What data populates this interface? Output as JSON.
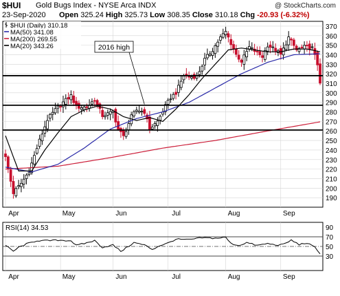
{
  "header": {
    "symbol": "$HUI",
    "name": "Gold Bugs Index - NYSE Arca INDX",
    "brand": "@ StockCharts.com",
    "date": "23-Sep-2020",
    "open_label": "Open",
    "open": "325.24",
    "high_label": "High",
    "high": "325.73",
    "low_label": "Low",
    "low": "308.35",
    "close_label": "Close",
    "close": "310.18",
    "chg_label": "Chg",
    "chg": "-20.93 (-6.32%)"
  },
  "legend": [
    {
      "label": "$HUI (Daily) 310.18",
      "color": "#000000",
      "swatch": "bar"
    },
    {
      "label": "MA(50) 341.08",
      "color": "#2a2aa8",
      "swatch": "line"
    },
    {
      "label": "MA(200) 269.55",
      "color": "#cc1f3a",
      "swatch": "line"
    },
    {
      "label": "MA(20) 343.26",
      "color": "#000000",
      "swatch": "line"
    }
  ],
  "annotation": {
    "text": "2016 high"
  },
  "rsi_label": "RSI(14) 34.53",
  "colors": {
    "up": "#000000",
    "down": "#c8102e",
    "ma50": "#2a2aa8",
    "ma200": "#cc1f3a",
    "ma20": "#000000",
    "grid": "#d4d4d4",
    "rsi": "#000000"
  },
  "chart_data": [
    {
      "type": "candlestick",
      "ylim": [
        180,
        375
      ],
      "y_ticks": [
        190,
        200,
        210,
        220,
        230,
        240,
        250,
        260,
        270,
        280,
        290,
        300,
        310,
        320,
        330,
        340,
        350,
        360,
        370
      ],
      "x_month_labels": [
        "Apr",
        "May",
        "Jun",
        "Jul",
        "Aug",
        "Sep"
      ],
      "x_month_starts": [
        0,
        21,
        41,
        62,
        84,
        105
      ],
      "horizontal_lines": [
        318,
        287,
        261
      ],
      "price_anchors": [
        [
          0,
          232
        ],
        [
          3,
          195
        ],
        [
          6,
          205
        ],
        [
          9,
          218
        ],
        [
          13,
          250
        ],
        [
          16,
          272
        ],
        [
          19,
          282
        ],
        [
          22,
          290
        ],
        [
          25,
          297
        ],
        [
          27,
          285
        ],
        [
          31,
          285
        ],
        [
          34,
          293
        ],
        [
          37,
          276
        ],
        [
          41,
          280
        ],
        [
          43,
          262
        ],
        [
          45,
          254
        ],
        [
          48,
          275
        ],
        [
          50,
          282
        ],
        [
          53,
          280
        ],
        [
          55,
          262
        ],
        [
          58,
          270
        ],
        [
          61,
          286
        ],
        [
          63,
          295
        ],
        [
          65,
          300
        ],
        [
          68,
          318
        ],
        [
          71,
          317
        ],
        [
          73,
          317
        ],
        [
          76,
          335
        ],
        [
          79,
          345
        ],
        [
          82,
          358
        ],
        [
          84,
          364
        ],
        [
          86,
          352
        ],
        [
          88,
          340
        ],
        [
          90,
          333
        ],
        [
          93,
          348
        ],
        [
          96,
          342
        ],
        [
          98,
          338
        ],
        [
          100,
          350
        ],
        [
          103,
          345
        ],
        [
          105,
          340
        ],
        [
          108,
          358
        ],
        [
          111,
          345
        ],
        [
          114,
          348
        ],
        [
          117,
          347
        ],
        [
          119,
          330
        ],
        [
          120,
          310
        ]
      ],
      "ma20": [
        [
          0,
          255
        ],
        [
          5,
          218
        ],
        [
          10,
          218
        ],
        [
          15,
          240
        ],
        [
          20,
          258
        ],
        [
          25,
          275
        ],
        [
          30,
          282
        ],
        [
          35,
          286
        ],
        [
          40,
          283
        ],
        [
          45,
          275
        ],
        [
          50,
          271
        ],
        [
          55,
          274
        ],
        [
          60,
          270
        ],
        [
          65,
          283
        ],
        [
          70,
          298
        ],
        [
          75,
          315
        ],
        [
          80,
          330
        ],
        [
          85,
          345
        ],
        [
          90,
          347
        ],
        [
          95,
          345
        ],
        [
          100,
          343
        ],
        [
          105,
          343
        ],
        [
          110,
          346
        ],
        [
          115,
          346
        ],
        [
          120,
          343
        ]
      ],
      "ma50": [
        [
          0,
          222
        ],
        [
          10,
          217
        ],
        [
          20,
          225
        ],
        [
          30,
          242
        ],
        [
          40,
          262
        ],
        [
          50,
          273
        ],
        [
          60,
          280
        ],
        [
          70,
          290
        ],
        [
          80,
          305
        ],
        [
          90,
          320
        ],
        [
          100,
          332
        ],
        [
          110,
          340
        ],
        [
          120,
          341
        ]
      ],
      "ma200": [
        [
          0,
          220
        ],
        [
          20,
          223
        ],
        [
          40,
          232
        ],
        [
          60,
          242
        ],
        [
          80,
          250
        ],
        [
          100,
          260
        ],
        [
          120,
          269.55
        ]
      ]
    },
    {
      "type": "line",
      "title": "RSI(14) 34.53",
      "ylim": [
        0,
        100
      ],
      "y_ticks": [
        30,
        50,
        70,
        90
      ],
      "x_month_labels": [
        "Apr",
        "May",
        "Jun",
        "Jul",
        "Aug",
        "Sep"
      ],
      "horizontal_lines": [
        30,
        50,
        70
      ],
      "values_anchors": [
        [
          0,
          52
        ],
        [
          3,
          40
        ],
        [
          5,
          48
        ],
        [
          8,
          55
        ],
        [
          12,
          62
        ],
        [
          16,
          62
        ],
        [
          20,
          63
        ],
        [
          25,
          62
        ],
        [
          27,
          52
        ],
        [
          30,
          56
        ],
        [
          34,
          62
        ],
        [
          37,
          48
        ],
        [
          41,
          53
        ],
        [
          44,
          40
        ],
        [
          46,
          47
        ],
        [
          49,
          58
        ],
        [
          53,
          53
        ],
        [
          56,
          44
        ],
        [
          59,
          52
        ],
        [
          62,
          57
        ],
        [
          65,
          65
        ],
        [
          70,
          64
        ],
        [
          75,
          68
        ],
        [
          80,
          67
        ],
        [
          84,
          69
        ],
        [
          86,
          56
        ],
        [
          89,
          52
        ],
        [
          92,
          58
        ],
        [
          96,
          52
        ],
        [
          100,
          56
        ],
        [
          103,
          53
        ],
        [
          106,
          54
        ],
        [
          109,
          63
        ],
        [
          112,
          54
        ],
        [
          115,
          57
        ],
        [
          118,
          48
        ],
        [
          120,
          34.53
        ]
      ]
    }
  ]
}
